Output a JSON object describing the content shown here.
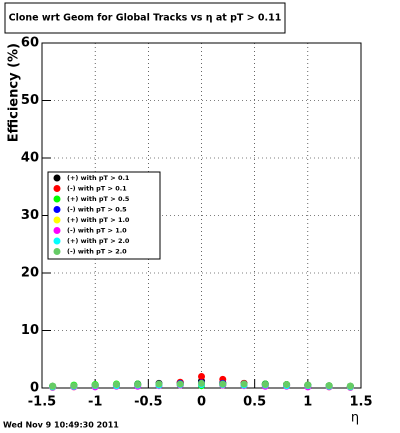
{
  "chart_data": {
    "type": "scatter",
    "title": "Clone wrt Geom for Global Tracks vs   η at pT > 0.11",
    "x_label": "η",
    "y_label": "Efficiency (%)",
    "timestamp": "Wed Nov  9 10:49:30 2011",
    "x": [
      -1.4,
      -1.2,
      -1.0,
      -0.8,
      -0.6,
      -0.4,
      -0.2,
      0.0,
      0.2,
      0.4,
      0.6,
      0.8,
      1.0,
      1.2,
      1.4
    ],
    "series": [
      {
        "name": "(+) with pT > 0.1",
        "color": "#000000",
        "values": [
          0.3,
          0.4,
          0.5,
          0.6,
          0.7,
          0.8,
          0.9,
          1.2,
          0.9,
          0.8,
          0.7,
          0.6,
          0.5,
          0.4,
          0.3
        ]
      },
      {
        "name": "(-) with pT > 0.1",
        "color": "#ff0000",
        "values": [
          0.2,
          0.3,
          0.3,
          0.4,
          0.5,
          0.6,
          1.0,
          2.0,
          1.5,
          0.8,
          0.6,
          0.5,
          0.4,
          0.3,
          0.2
        ]
      },
      {
        "name": "(+) with pT > 0.5",
        "color": "#00ff00",
        "values": [
          0.3,
          0.5,
          0.6,
          0.7,
          0.7,
          0.6,
          0.5,
          0.4,
          0.5,
          0.6,
          0.7,
          0.6,
          0.5,
          0.4,
          0.3
        ]
      },
      {
        "name": "(-) with pT > 0.5",
        "color": "#0000ff",
        "values": [
          0.2,
          0.3,
          0.4,
          0.5,
          0.6,
          0.7,
          0.8,
          0.9,
          0.8,
          0.7,
          0.6,
          0.5,
          0.4,
          0.3,
          0.2
        ]
      },
      {
        "name": "(+) with pT > 1.0",
        "color": "#ffff00",
        "values": [
          0.1,
          0.2,
          0.3,
          0.4,
          0.5,
          0.5,
          0.6,
          0.7,
          0.6,
          0.5,
          0.5,
          0.4,
          0.3,
          0.2,
          0.1
        ]
      },
      {
        "name": "(-) with pT > 1.0",
        "color": "#ff00ff",
        "values": [
          0.1,
          0.2,
          0.2,
          0.3,
          0.3,
          0.4,
          0.5,
          0.6,
          0.5,
          0.4,
          0.3,
          0.3,
          0.2,
          0.2,
          0.1
        ]
      },
      {
        "name": "(+) with pT > 2.0",
        "color": "#00ffff",
        "values": [
          0.2,
          0.3,
          0.4,
          0.4,
          0.5,
          0.5,
          0.6,
          0.6,
          0.6,
          0.5,
          0.5,
          0.4,
          0.4,
          0.3,
          0.2
        ]
      },
      {
        "name": "(-) with pT > 2.0",
        "color": "#66cc66",
        "values": [
          0.3,
          0.4,
          0.5,
          0.6,
          0.6,
          0.7,
          0.7,
          0.8,
          0.7,
          0.7,
          0.6,
          0.6,
          0.5,
          0.4,
          0.3
        ]
      }
    ],
    "xlim": [
      -1.5,
      1.5
    ],
    "xticks": [
      -1.5,
      -1,
      -0.5,
      0,
      0.5,
      1,
      1.5
    ],
    "ylim": [
      0,
      60
    ],
    "yticks": [
      0,
      10,
      20,
      30,
      40,
      50,
      60
    ],
    "grid": true
  }
}
